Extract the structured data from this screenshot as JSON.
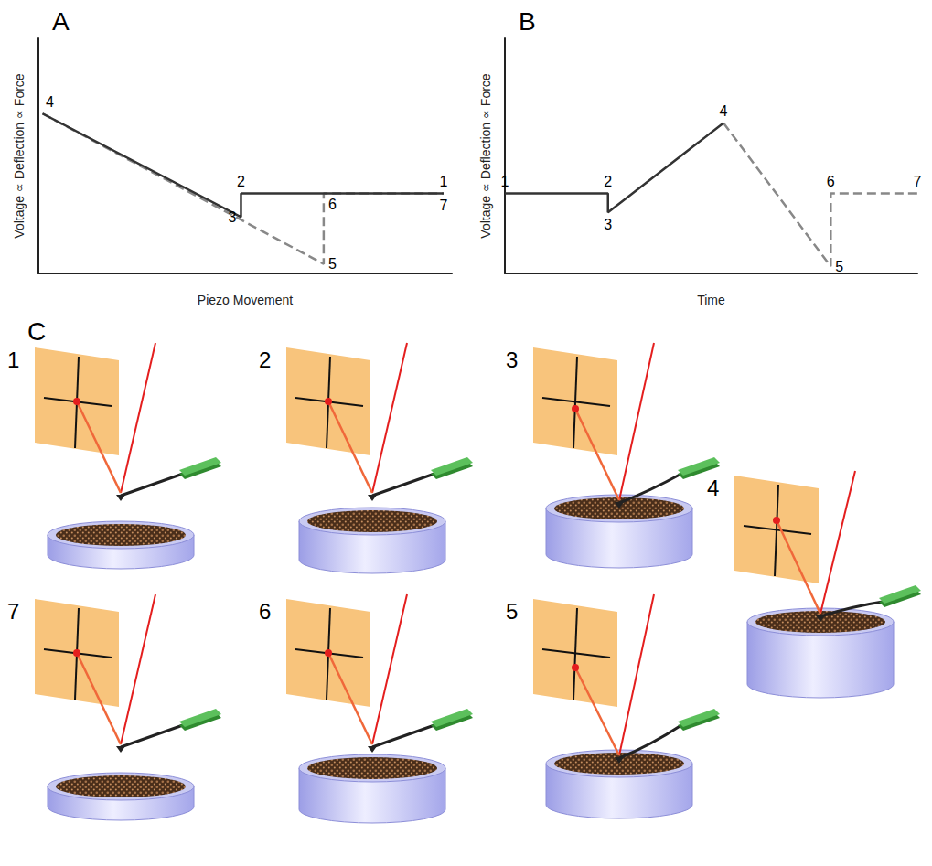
{
  "chart_data": [
    {
      "type": "line",
      "title": "A",
      "x_label": "Piezo Movement",
      "y_label": "Voltage ∝ Deflection ∝ Force",
      "xlim": [
        0,
        10
      ],
      "ylim": [
        0,
        10
      ],
      "tick_labels": false,
      "grid": false,
      "series": [
        {
          "color": "#333333",
          "line_style": "solid",
          "x": [
            9.8,
            4.9,
            4.9,
            0.1
          ],
          "values": [
            3.4,
            3.4,
            2.4,
            6.8
          ],
          "point_labels": [
            "1",
            "2",
            "3",
            "4"
          ]
        },
        {
          "color": "#888888",
          "line_style": "dashed",
          "x": [
            0.1,
            6.9,
            6.9,
            9.8
          ],
          "values": [
            6.8,
            0.4,
            3.4,
            3.4
          ],
          "point_labels": [
            null,
            "5",
            "6",
            "7"
          ]
        }
      ]
    },
    {
      "type": "line",
      "title": "B",
      "x_label": "Time",
      "y_label": "Voltage ∝ Deflection ∝ Force",
      "xlim": [
        0,
        10
      ],
      "ylim": [
        0,
        10
      ],
      "tick_labels": false,
      "grid": false,
      "series": [
        {
          "color": "#333333",
          "line_style": "solid",
          "x": [
            0,
            2.5,
            2.5,
            5.3
          ],
          "values": [
            3.4,
            3.4,
            2.6,
            6.4
          ],
          "point_labels": [
            "1",
            "2",
            "3",
            "4"
          ]
        },
        {
          "color": "#888888",
          "line_style": "dashed",
          "x": [
            5.3,
            7.9,
            7.9,
            10
          ],
          "values": [
            6.4,
            0.3,
            3.4,
            3.4
          ],
          "point_labels": [
            null,
            "5",
            "6",
            "7"
          ]
        }
      ]
    }
  ],
  "illustration": {
    "title": "C",
    "steps": [
      "1",
      "2",
      "3",
      "4",
      "5",
      "6",
      "7"
    ]
  }
}
